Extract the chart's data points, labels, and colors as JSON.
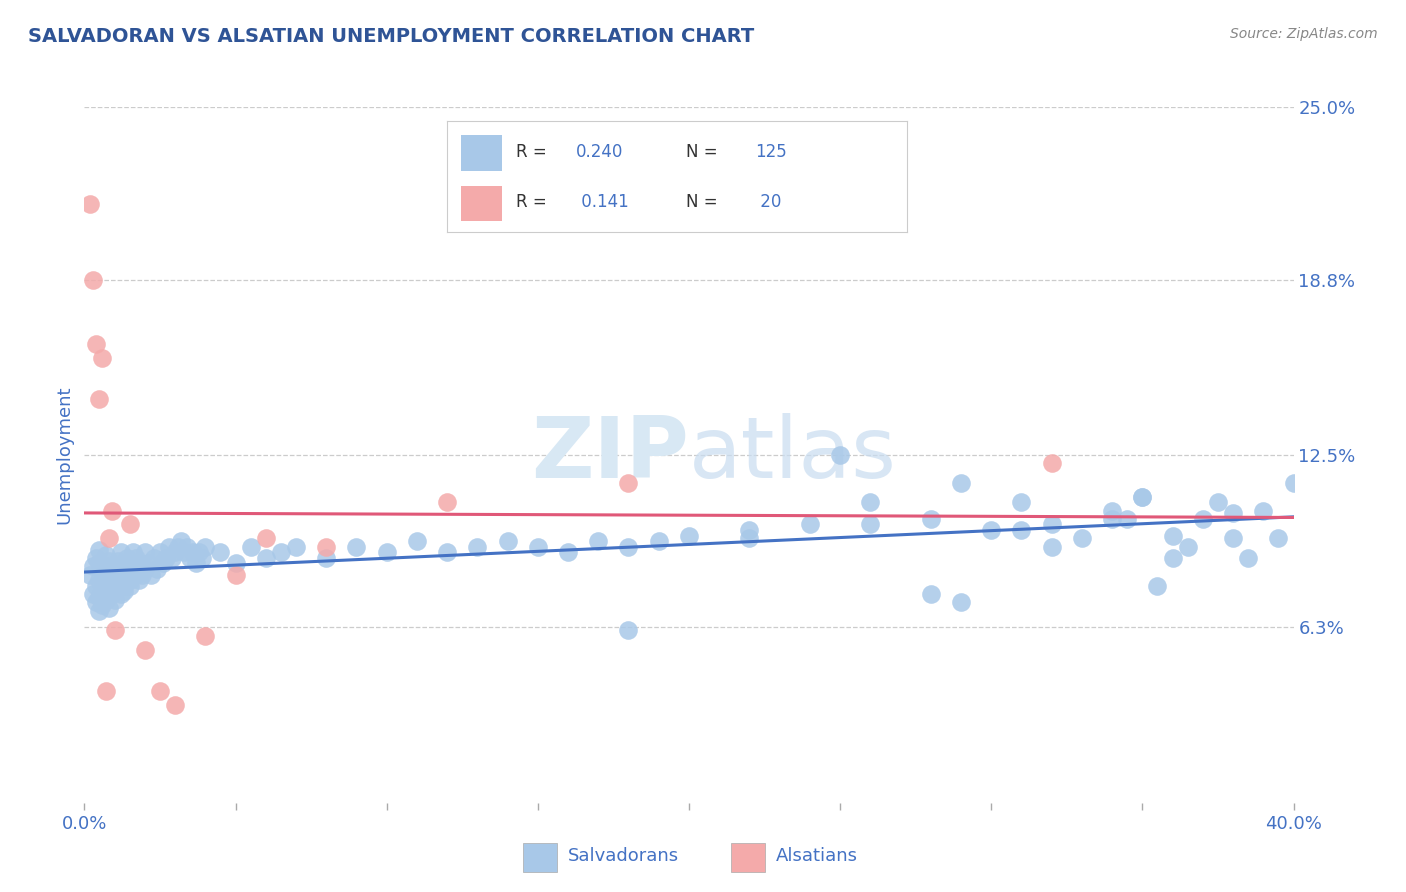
{
  "title": "SALVADORAN VS ALSATIAN UNEMPLOYMENT CORRELATION CHART",
  "source": "Source: ZipAtlas.com",
  "ylabel": "Unemployment",
  "x_min": 0.0,
  "x_max": 0.4,
  "y_min": 0.0,
  "y_max": 0.25,
  "y_ticks": [
    0.063,
    0.125,
    0.188,
    0.25
  ],
  "y_tick_labels": [
    "6.3%",
    "12.5%",
    "18.8%",
    "25.0%"
  ],
  "x_ticks": [
    0.0,
    0.05,
    0.1,
    0.15,
    0.2,
    0.25,
    0.3,
    0.35,
    0.4
  ],
  "salvadoran_R": 0.24,
  "salvadoran_N": 125,
  "alsatian_R": 0.141,
  "alsatian_N": 20,
  "blue_scatter_color": "#A8C8E8",
  "blue_line_color": "#4472C4",
  "pink_scatter_color": "#F4AAAA",
  "pink_line_color": "#E05878",
  "title_color": "#2F5496",
  "label_color": "#4472C4",
  "watermark_color": "#D8E8F4",
  "background_color": "#FFFFFF",
  "grid_color": "#CCCCCC",
  "salvadoran_x": [
    0.002,
    0.003,
    0.003,
    0.004,
    0.004,
    0.004,
    0.005,
    0.005,
    0.005,
    0.005,
    0.005,
    0.006,
    0.006,
    0.006,
    0.007,
    0.007,
    0.007,
    0.007,
    0.008,
    0.008,
    0.008,
    0.008,
    0.009,
    0.009,
    0.009,
    0.01,
    0.01,
    0.01,
    0.01,
    0.011,
    0.011,
    0.011,
    0.012,
    0.012,
    0.012,
    0.013,
    0.013,
    0.013,
    0.014,
    0.014,
    0.015,
    0.015,
    0.015,
    0.016,
    0.016,
    0.017,
    0.017,
    0.018,
    0.018,
    0.019,
    0.02,
    0.02,
    0.021,
    0.022,
    0.023,
    0.024,
    0.025,
    0.026,
    0.027,
    0.028,
    0.029,
    0.03,
    0.031,
    0.032,
    0.033,
    0.034,
    0.035,
    0.036,
    0.037,
    0.038,
    0.039,
    0.04,
    0.045,
    0.05,
    0.055,
    0.06,
    0.065,
    0.07,
    0.08,
    0.09,
    0.1,
    0.11,
    0.12,
    0.13,
    0.14,
    0.15,
    0.16,
    0.17,
    0.18,
    0.19,
    0.2,
    0.22,
    0.24,
    0.26,
    0.28,
    0.3,
    0.32,
    0.34,
    0.36,
    0.38,
    0.25,
    0.29,
    0.31,
    0.22,
    0.18,
    0.32,
    0.28,
    0.35,
    0.38,
    0.39,
    0.4,
    0.37,
    0.26,
    0.31,
    0.34,
    0.29,
    0.33,
    0.35,
    0.36,
    0.395,
    0.385,
    0.375,
    0.365,
    0.355,
    0.345
  ],
  "salvadoran_y": [
    0.082,
    0.075,
    0.085,
    0.078,
    0.072,
    0.088,
    0.08,
    0.074,
    0.086,
    0.069,
    0.091,
    0.077,
    0.083,
    0.071,
    0.079,
    0.085,
    0.073,
    0.089,
    0.076,
    0.082,
    0.07,
    0.087,
    0.079,
    0.083,
    0.075,
    0.081,
    0.077,
    0.085,
    0.073,
    0.083,
    0.079,
    0.087,
    0.075,
    0.082,
    0.09,
    0.078,
    0.084,
    0.076,
    0.082,
    0.088,
    0.08,
    0.086,
    0.078,
    0.084,
    0.09,
    0.082,
    0.088,
    0.08,
    0.086,
    0.082,
    0.084,
    0.09,
    0.086,
    0.082,
    0.088,
    0.084,
    0.09,
    0.086,
    0.088,
    0.092,
    0.088,
    0.09,
    0.092,
    0.094,
    0.09,
    0.092,
    0.088,
    0.09,
    0.086,
    0.09,
    0.088,
    0.092,
    0.09,
    0.086,
    0.092,
    0.088,
    0.09,
    0.092,
    0.088,
    0.092,
    0.09,
    0.094,
    0.09,
    0.092,
    0.094,
    0.092,
    0.09,
    0.094,
    0.092,
    0.094,
    0.096,
    0.098,
    0.1,
    0.1,
    0.102,
    0.098,
    0.1,
    0.102,
    0.096,
    0.104,
    0.125,
    0.115,
    0.108,
    0.095,
    0.062,
    0.092,
    0.075,
    0.11,
    0.095,
    0.105,
    0.115,
    0.102,
    0.108,
    0.098,
    0.105,
    0.072,
    0.095,
    0.11,
    0.088,
    0.095,
    0.088,
    0.108,
    0.092,
    0.078,
    0.102
  ],
  "alsatian_x": [
    0.002,
    0.003,
    0.004,
    0.005,
    0.006,
    0.007,
    0.008,
    0.009,
    0.01,
    0.015,
    0.02,
    0.025,
    0.03,
    0.04,
    0.05,
    0.06,
    0.08,
    0.12,
    0.18,
    0.32
  ],
  "alsatian_y": [
    0.215,
    0.188,
    0.165,
    0.145,
    0.16,
    0.04,
    0.095,
    0.105,
    0.062,
    0.1,
    0.055,
    0.04,
    0.035,
    0.06,
    0.082,
    0.095,
    0.092,
    0.108,
    0.115,
    0.122
  ]
}
